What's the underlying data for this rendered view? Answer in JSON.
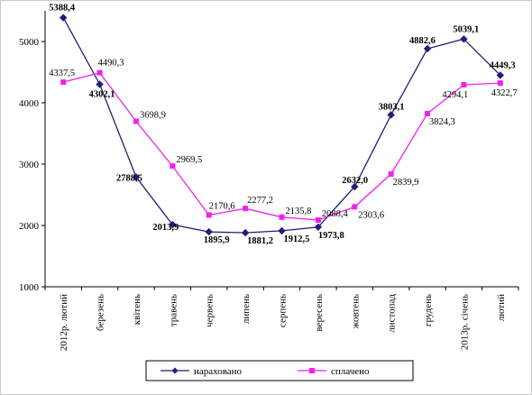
{
  "chart_data": {
    "type": "line",
    "title": "",
    "xlabel": "",
    "ylabel": "",
    "categories": [
      "2012р. лютий",
      "березень",
      "квітень",
      "травень",
      "червень",
      "липень",
      "серпень",
      "вересень",
      "жовтень",
      "листопад",
      "грудень",
      "2013р. січень",
      "лютий"
    ],
    "ylim": [
      1000,
      5500
    ],
    "yticks": [
      1000,
      2000,
      3000,
      4000,
      5000
    ],
    "grid": false,
    "legend_position": "bottom",
    "series": [
      {
        "name": "нараховано",
        "color": "#1f1f78",
        "marker": "diamond",
        "values": [
          5388.4,
          4302.1,
          2788.5,
          2013.9,
          1895.9,
          1881.2,
          1912.5,
          1973.8,
          2632.0,
          3803.1,
          4882.6,
          5039.1,
          4449.3
        ],
        "labels": [
          "5388,4",
          "4302,1",
          "2788,5",
          "2013,9",
          "1895,9",
          "1881,2",
          "1912,5",
          "1973,8",
          "2632,0",
          "3803,1",
          "4882,6",
          "5039,1",
          "4449,3"
        ]
      },
      {
        "name": "сплачено",
        "color": "#ee22ee",
        "marker": "square",
        "values": [
          4337.5,
          4490.3,
          3698.9,
          2969.5,
          2170.6,
          2277.2,
          2135.8,
          2088.4,
          2303.6,
          2839.9,
          3824.3,
          4294.1,
          4322.7
        ],
        "labels": [
          "4337,5",
          "4490,3",
          "3698,9",
          "2969,5",
          "2170,6",
          "2277,2",
          "2135,8",
          "2088,4",
          "2303,6",
          "2839,9",
          "3824,3",
          "4294,1",
          "4322,7"
        ]
      }
    ]
  }
}
